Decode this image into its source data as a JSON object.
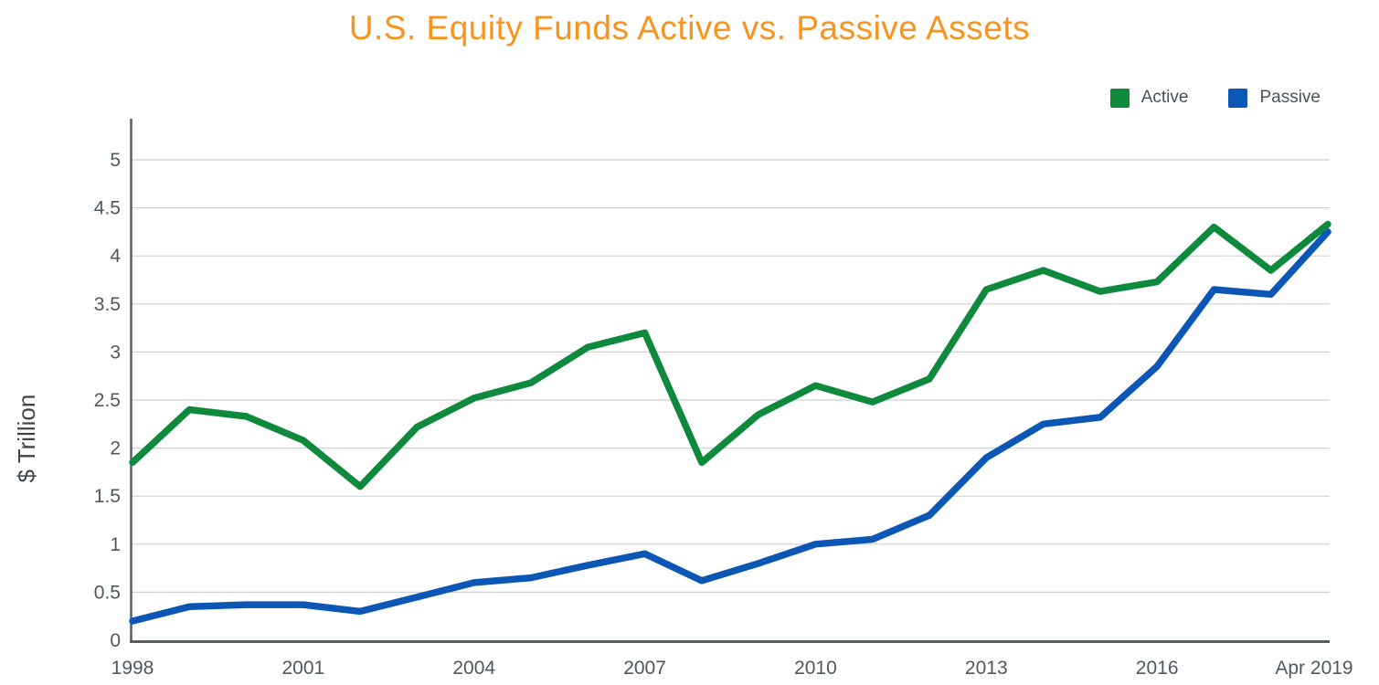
{
  "title": "U.S. Equity Funds Active vs. Passive Assets",
  "colors": {
    "title": "#f8941d",
    "axis": "#565e64",
    "grid": "#ccd1d5",
    "tick_text": "#4f5860",
    "ylabel_text": "#3d454c",
    "active": "#0f8a3d",
    "passive": "#0c56b6"
  },
  "legend": [
    {
      "label": "Active",
      "color": "#0f8a3d"
    },
    {
      "label": "Passive",
      "color": "#0c56b6"
    }
  ],
  "chart_data": {
    "type": "line",
    "title": "U.S. Equity Funds Active vs. Passive Assets",
    "xlabel": "",
    "ylabel": "$ Trillion",
    "ylim": [
      0,
      5
    ],
    "grid": true,
    "legend_position": "top-right",
    "x": [
      "1998",
      "1999",
      "2000",
      "2001",
      "2002",
      "2003",
      "2004",
      "2005",
      "2006",
      "2007",
      "2008",
      "2009",
      "2010",
      "2011",
      "2012",
      "2013",
      "2014",
      "2015",
      "2016",
      "2017",
      "2018",
      "Apr 2019"
    ],
    "x_ticks": [
      {
        "index": 0,
        "label": "1998"
      },
      {
        "index": 3,
        "label": "2001"
      },
      {
        "index": 6,
        "label": "2004"
      },
      {
        "index": 9,
        "label": "2007"
      },
      {
        "index": 12,
        "label": "2010"
      },
      {
        "index": 15,
        "label": "2013"
      },
      {
        "index": 18,
        "label": "2016"
      },
      {
        "index": 21,
        "label": "Apr 2019"
      }
    ],
    "y_ticks": [
      {
        "value": 0,
        "label": "0"
      },
      {
        "value": 0.5,
        "label": "0.5"
      },
      {
        "value": 1,
        "label": "1"
      },
      {
        "value": 1.5,
        "label": "1.5"
      },
      {
        "value": 2,
        "label": "2"
      },
      {
        "value": 2.5,
        "label": "2.5"
      },
      {
        "value": 3,
        "label": "3"
      },
      {
        "value": 3.5,
        "label": "3.5"
      },
      {
        "value": 4,
        "label": "4"
      },
      {
        "value": 4.5,
        "label": "4.5"
      },
      {
        "value": 5,
        "label": "5"
      }
    ],
    "series": [
      {
        "name": "Active",
        "color": "#0f8a3d",
        "values": [
          1.85,
          2.4,
          2.33,
          2.08,
          1.6,
          2.22,
          2.52,
          2.68,
          3.05,
          3.2,
          1.85,
          2.35,
          2.65,
          2.48,
          2.72,
          3.65,
          3.85,
          3.63,
          3.73,
          4.3,
          3.85,
          4.33
        ]
      },
      {
        "name": "Passive",
        "color": "#0c56b6",
        "values": [
          0.2,
          0.35,
          0.37,
          0.37,
          0.3,
          0.45,
          0.6,
          0.65,
          0.78,
          0.9,
          0.62,
          0.8,
          1.0,
          1.05,
          1.3,
          1.9,
          2.25,
          2.32,
          2.85,
          3.65,
          3.6,
          4.25
        ]
      }
    ]
  }
}
